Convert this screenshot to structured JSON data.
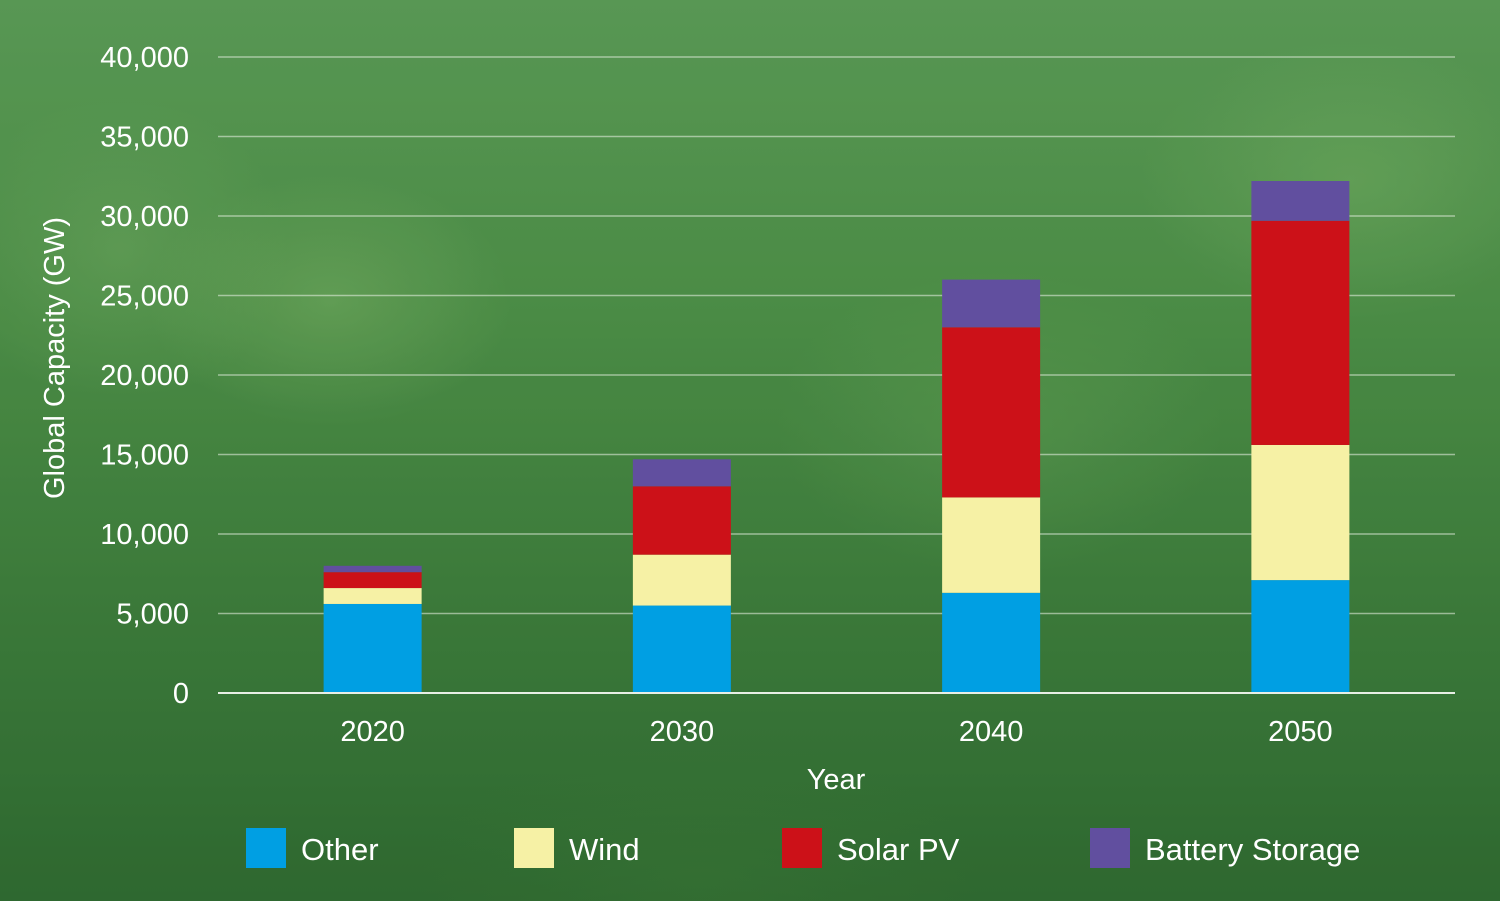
{
  "chart_data": {
    "type": "bar",
    "stacked": true,
    "categories": [
      "2020",
      "2030",
      "2040",
      "2050"
    ],
    "series": [
      {
        "name": "Other",
        "color": "#009fe3",
        "values": [
          5600,
          5500,
          6300,
          7100
        ]
      },
      {
        "name": "Wind",
        "color": "#f6f1a5",
        "values": [
          1000,
          3200,
          6000,
          8500
        ]
      },
      {
        "name": "Solar PV",
        "color": "#cc1118",
        "values": [
          1000,
          4300,
          10700,
          14100
        ]
      },
      {
        "name": "Battery Storage",
        "color": "#614f9f",
        "values": [
          400,
          1700,
          3000,
          2500
        ]
      }
    ],
    "title": "",
    "xlabel": "Year",
    "ylabel": "Global Capacity (GW)",
    "ylim": [
      0,
      40000
    ],
    "yticks": [
      "0",
      "5,000",
      "10,000",
      "15,000",
      "20,000",
      "25,000",
      "30,000",
      "35,000",
      "40,000"
    ],
    "grid": true,
    "legend_position": "bottom"
  }
}
